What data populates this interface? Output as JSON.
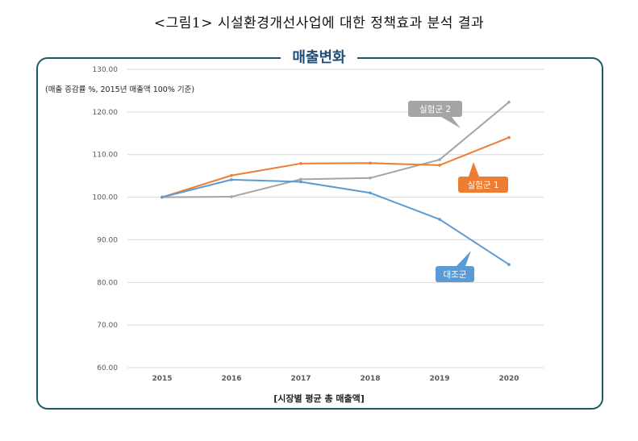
{
  "figure": {
    "caption": "<그림1> 시설환경개선사업에 대한 정책효과 분석 결과"
  },
  "chart_data": {
    "type": "line",
    "title": "매출변화",
    "note": "(매출 증감률 %, 2015년 매출액 100% 기준)",
    "xlabel": "[시장별 평균 총 매출액]",
    "ylabel": "",
    "categories": [
      "2015",
      "2016",
      "2017",
      "2018",
      "2019",
      "2020"
    ],
    "ylim": [
      60,
      130
    ],
    "yticks": [
      "130.00",
      "120.00",
      "110.00",
      "100.00",
      "90.00",
      "80.00",
      "70.00",
      "60.00"
    ],
    "grid": true,
    "series": [
      {
        "name": "실험군 2",
        "color": "#a5a5a5",
        "values": [
          100.0,
          100.1,
          104.2,
          104.5,
          108.8,
          122.3
        ]
      },
      {
        "name": "실험군 1",
        "color": "#ed7d31",
        "values": [
          100.0,
          105.1,
          107.9,
          108.0,
          107.5,
          114.0
        ]
      },
      {
        "name": "대조군",
        "color": "#5b9bd5",
        "values": [
          100.0,
          104.1,
          103.6,
          101.0,
          94.8,
          84.2
        ]
      }
    ]
  }
}
